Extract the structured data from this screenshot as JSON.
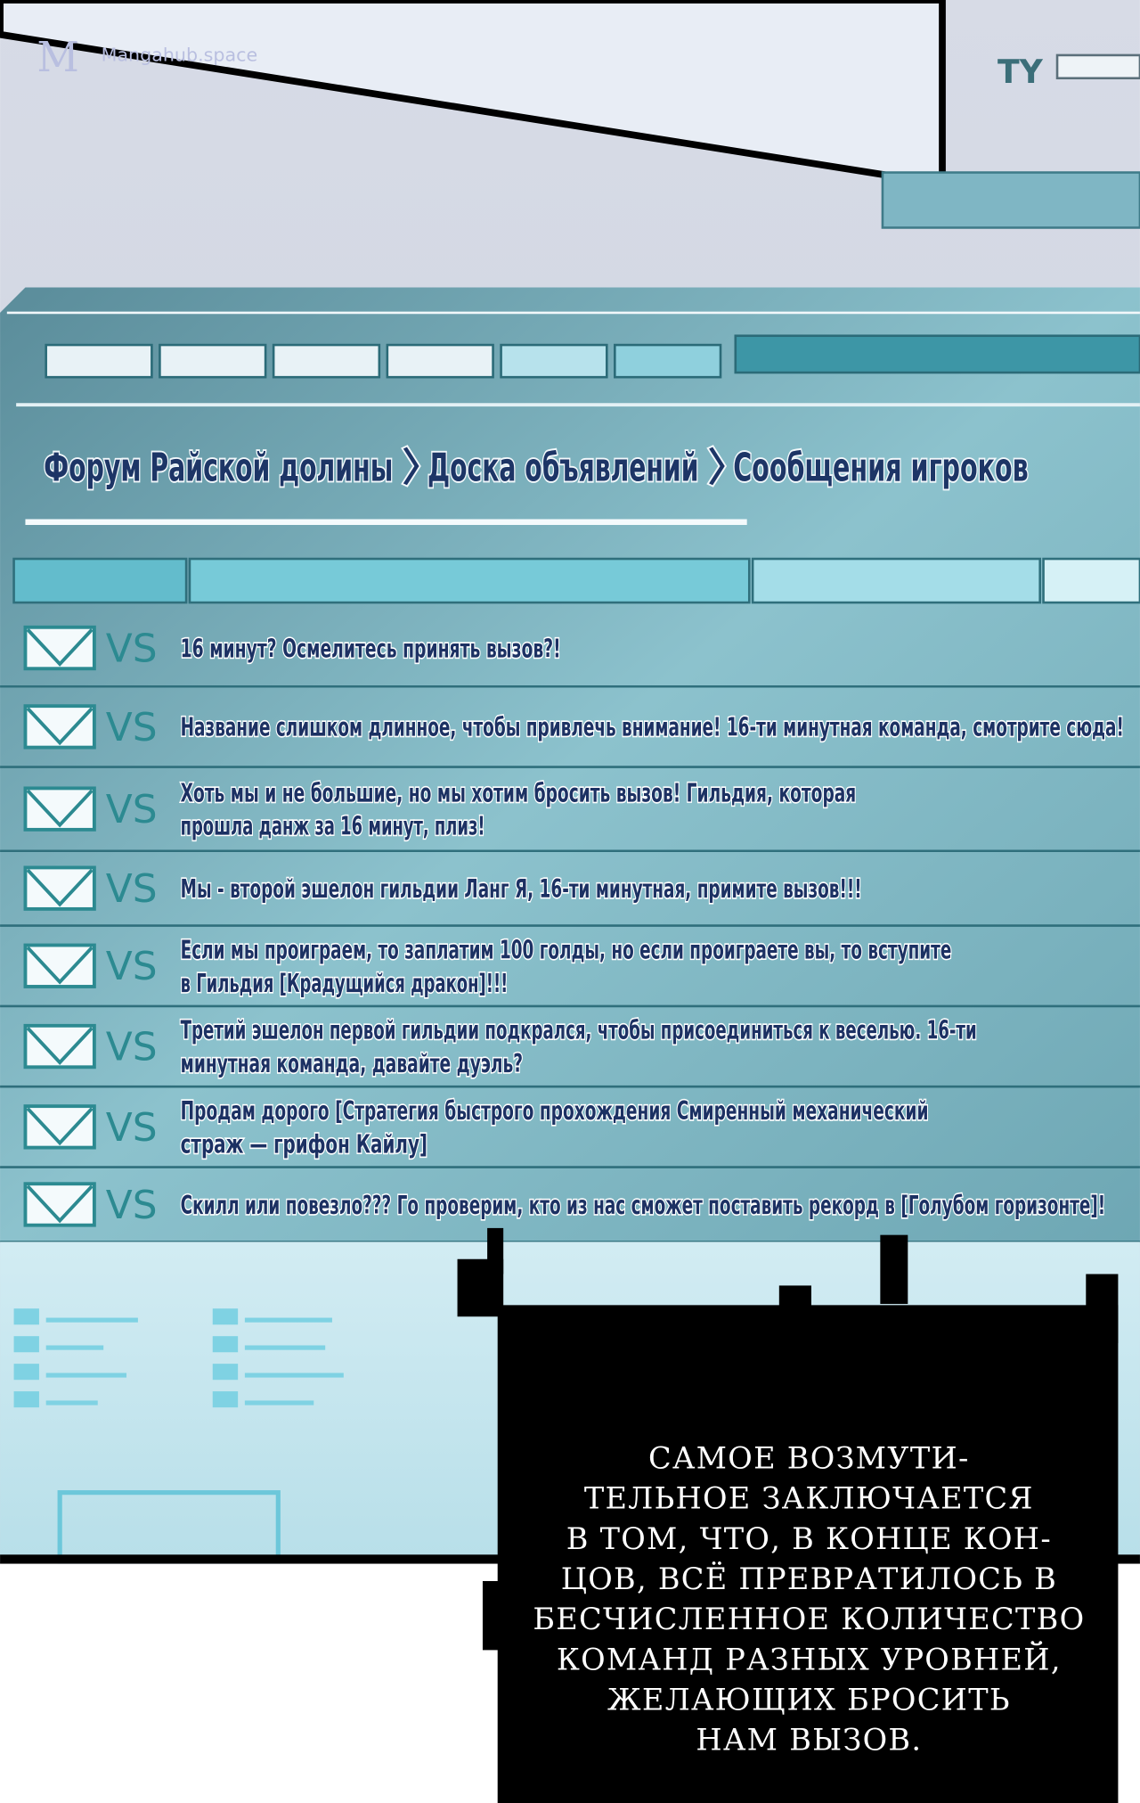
{
  "watermark": "Mangahub.space",
  "header_tag": "TY",
  "breadcrumb": {
    "parts": [
      "Форум Райской долины",
      "Доска объявлений",
      "Сообщения игроков"
    ],
    "separator": "〉"
  },
  "posts": [
    {
      "tag": "VS",
      "lines": [
        "16 минут? Осмелитесь принять вызов?!"
      ]
    },
    {
      "tag": "VS",
      "lines": [
        "Название слишком длинное, чтобы привлечь внимание! 16-ти минутная команда, смотрите сюда!"
      ]
    },
    {
      "tag": "VS",
      "lines": [
        "Хоть мы и не большие, но мы хотим бросить вызов! Гильдия, которая",
        "прошла данж за 16 минут, плиз!"
      ]
    },
    {
      "tag": "VS",
      "lines": [
        "Мы - второй эшелон гильдии Ланг Я, 16-ти минутная, примите вызов!!!"
      ]
    },
    {
      "tag": "VS",
      "lines": [
        "Если мы проиграем, то заплатим 100 голды, но если проиграете вы, то вступите",
        "в Гильдия [Крадущийся дракон]!!!"
      ]
    },
    {
      "tag": "VS",
      "lines": [
        "Третий эшелон первой гильдии подкрался, чтобы присоединиться к веселью. 16-ти",
        "минутная команда, давайте дуэль?"
      ]
    },
    {
      "tag": "VS",
      "lines": [
        "Продам дорого [Стратегия быстрого прохождения Смиренный механический",
        "страж — грифон Кайлу]"
      ]
    },
    {
      "tag": "VS",
      "lines": [
        "Скилл или повезло??? Го проверим, кто из нас сможет поставить рекорд в [Голубом горизонте]!"
      ]
    }
  ],
  "caption": [
    "Самое возмути-",
    "тельное заключается",
    "в том, что, в конце кон-",
    "цов, всё превратилось в",
    "бесчисленное количество",
    "команд разных уровней,",
    "желающих бросить",
    "нам вызов."
  ]
}
